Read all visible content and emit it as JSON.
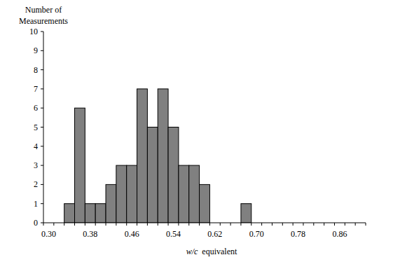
{
  "chart_data": {
    "type": "bar",
    "x_label": "w/c equivalent",
    "y_label": "Number of Measurements",
    "categories": [
      "0.30",
      null,
      null,
      null,
      "0.38",
      null,
      null,
      null,
      "0.46",
      null,
      null,
      null,
      "0.54",
      null,
      null,
      null,
      "0.62",
      null,
      null,
      null,
      "0.70",
      null,
      null,
      null,
      "0.78",
      null,
      null,
      null,
      "0.86",
      null,
      null
    ],
    "values": [
      0,
      0,
      1,
      6,
      1,
      1,
      2,
      3,
      3,
      7,
      5,
      7,
      5,
      3,
      3,
      2,
      0,
      0,
      0,
      1,
      0,
      0,
      0,
      0,
      0,
      0,
      0,
      0,
      0,
      0,
      0
    ],
    "color": "#808080",
    "ylim": [
      0,
      10
    ],
    "yticks": [
      0,
      1,
      2,
      3,
      4,
      5,
      6,
      7,
      8,
      9,
      10
    ],
    "grid": false
  }
}
